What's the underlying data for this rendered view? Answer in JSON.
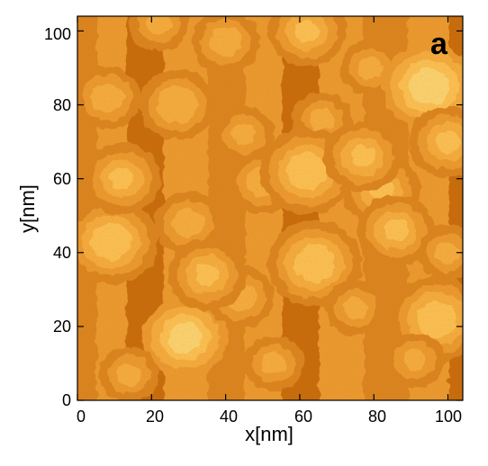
{
  "panel_label": "a",
  "colors": {
    "level_palette": [
      "#a84a00",
      "#c96a10",
      "#dd8420",
      "#ee9a30",
      "#f8ad42",
      "#ffc258",
      "#ffd676"
    ],
    "frame": "#000000"
  },
  "chart_data": {
    "type": "heatmap",
    "xlabel": "x[nm]",
    "ylabel": "y[nm]",
    "xlim": [
      0,
      104
    ],
    "ylim": [
      0,
      104
    ],
    "x_ticks": [
      "0",
      "20",
      "40",
      "60",
      "80",
      "100"
    ],
    "y_ticks": [
      "0",
      "20",
      "40",
      "60",
      "80",
      "100"
    ],
    "x_tick_values": [
      0,
      20,
      40,
      60,
      80,
      100
    ],
    "y_tick_values": [
      0,
      20,
      40,
      60,
      80,
      100
    ],
    "vertical_step_edges_nm": [
      6,
      14,
      24,
      36,
      46,
      56,
      66,
      78,
      90,
      101
    ],
    "islands": [
      {
        "x": 8,
        "y": 82,
        "r": 4,
        "level": 4
      },
      {
        "x": 22,
        "y": 102,
        "r": 3,
        "level": 4
      },
      {
        "x": 27,
        "y": 80,
        "r": 5,
        "level": 4
      },
      {
        "x": 40,
        "y": 97,
        "r": 4,
        "level": 4
      },
      {
        "x": 62,
        "y": 100,
        "r": 3,
        "level": 5
      },
      {
        "x": 66,
        "y": 76,
        "r": 3,
        "level": 4
      },
      {
        "x": 79,
        "y": 90,
        "r": 3,
        "level": 4
      },
      {
        "x": 95,
        "y": 85,
        "r": 5,
        "level": 6
      },
      {
        "x": 100,
        "y": 70,
        "r": 3,
        "level": 5
      },
      {
        "x": 9,
        "y": 43,
        "r": 5,
        "level": 5
      },
      {
        "x": 30,
        "y": 48,
        "r": 4,
        "level": 4
      },
      {
        "x": 50,
        "y": 59,
        "r": 4,
        "level": 4
      },
      {
        "x": 62,
        "y": 62,
        "r": 5,
        "level": 5
      },
      {
        "x": 64,
        "y": 37,
        "r": 5,
        "level": 5
      },
      {
        "x": 82,
        "y": 57,
        "r": 3,
        "level": 5
      },
      {
        "x": 86,
        "y": 46,
        "r": 3,
        "level": 5
      },
      {
        "x": 100,
        "y": 40,
        "r": 3,
        "level": 4
      },
      {
        "x": 29,
        "y": 17,
        "r": 4,
        "level": 6
      },
      {
        "x": 44,
        "y": 28,
        "r": 4,
        "level": 4
      },
      {
        "x": 53,
        "y": 10,
        "r": 3,
        "level": 4
      },
      {
        "x": 75,
        "y": 25,
        "r": 3,
        "level": 4
      },
      {
        "x": 97,
        "y": 22,
        "r": 5,
        "level": 5
      },
      {
        "x": 91,
        "y": 11,
        "r": 3,
        "level": 4
      },
      {
        "x": 14,
        "y": 7,
        "r": 3,
        "level": 4
      },
      {
        "x": 45,
        "y": 72,
        "r": 3,
        "level": 4
      },
      {
        "x": 12,
        "y": 60,
        "r": 3,
        "level": 5
      },
      {
        "x": 35,
        "y": 34,
        "r": 3,
        "level": 5
      },
      {
        "x": 77,
        "y": 66,
        "r": 3,
        "level": 5
      }
    ]
  }
}
